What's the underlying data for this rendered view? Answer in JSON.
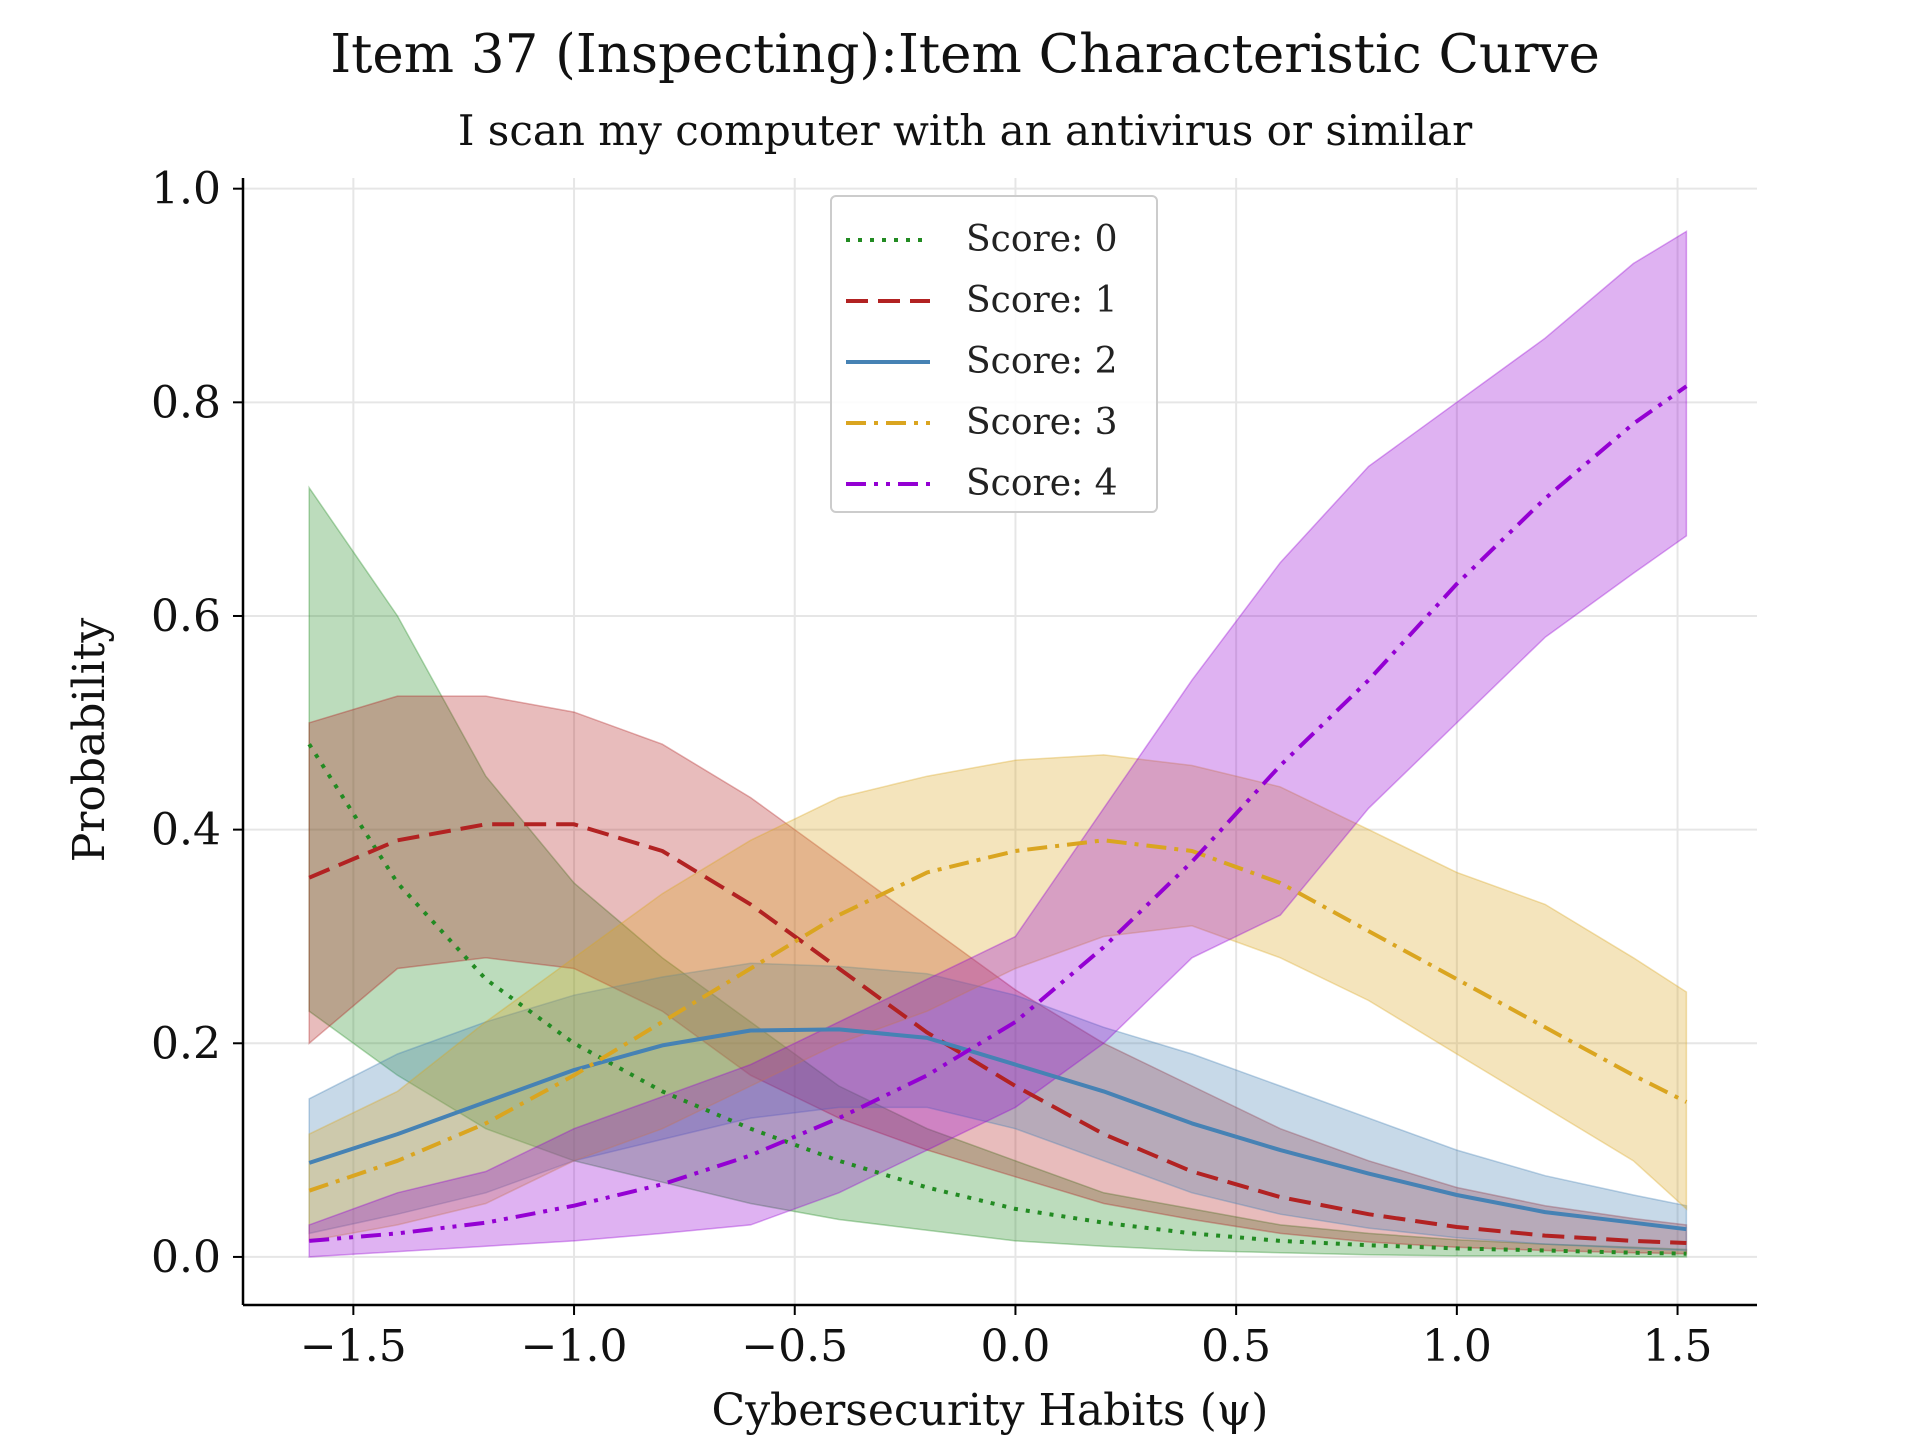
{
  "chart_data": {
    "type": "line",
    "title": "Item 37 (Inspecting):Item Characteristic Curve",
    "subtitle": "I scan my computer with an antivirus or similar",
    "xlabel": "Cybersecurity Habits (ψ)",
    "ylabel": "Probability",
    "xlim": [
      -1.75,
      1.68
    ],
    "ylim": [
      -0.045,
      1.01
    ],
    "xticks": [
      -1.5,
      -1.0,
      -0.5,
      0.0,
      0.5,
      1.0,
      1.5
    ],
    "xtick_labels": [
      "−1.5",
      "−1.0",
      "−0.5",
      "0.0",
      "0.5",
      "1.0",
      "1.5"
    ],
    "yticks": [
      0.0,
      0.2,
      0.4,
      0.6,
      0.8,
      1.0
    ],
    "ytick_labels": [
      "0.0",
      "0.2",
      "0.4",
      "0.6",
      "0.8",
      "1.0"
    ],
    "grid": true,
    "legend_position": "upper center",
    "x": [
      -1.6,
      -1.4,
      -1.2,
      -1.0,
      -0.8,
      -0.6,
      -0.4,
      -0.2,
      0.0,
      0.2,
      0.4,
      0.6,
      0.8,
      1.0,
      1.2,
      1.4,
      1.52
    ],
    "series": [
      {
        "name": "Score: 0",
        "color": "#228B22",
        "dash": "dotted",
        "values": [
          0.48,
          0.35,
          0.26,
          0.2,
          0.155,
          0.12,
          0.09,
          0.065,
          0.045,
          0.032,
          0.022,
          0.015,
          0.011,
          0.008,
          0.006,
          0.004,
          0.003
        ],
        "lower": [
          0.23,
          0.17,
          0.12,
          0.09,
          0.07,
          0.05,
          0.035,
          0.025,
          0.015,
          0.01,
          0.006,
          0.004,
          0.002,
          0.001,
          0.001,
          0.0,
          0.0
        ],
        "upper": [
          0.72,
          0.6,
          0.45,
          0.35,
          0.28,
          0.22,
          0.16,
          0.12,
          0.09,
          0.06,
          0.045,
          0.03,
          0.022,
          0.016,
          0.012,
          0.009,
          0.007
        ]
      },
      {
        "name": "Score: 1",
        "color": "#B22222",
        "dash": "dashed",
        "values": [
          0.355,
          0.39,
          0.405,
          0.405,
          0.38,
          0.33,
          0.27,
          0.21,
          0.16,
          0.115,
          0.08,
          0.056,
          0.04,
          0.028,
          0.02,
          0.015,
          0.013
        ],
        "lower": [
          0.2,
          0.27,
          0.28,
          0.27,
          0.23,
          0.17,
          0.13,
          0.1,
          0.075,
          0.05,
          0.035,
          0.022,
          0.014,
          0.009,
          0.006,
          0.004,
          0.003
        ],
        "upper": [
          0.5,
          0.525,
          0.525,
          0.51,
          0.48,
          0.43,
          0.37,
          0.31,
          0.25,
          0.2,
          0.16,
          0.12,
          0.09,
          0.065,
          0.048,
          0.036,
          0.03
        ]
      },
      {
        "name": "Score: 2",
        "color": "#4682B4",
        "dash": "solid",
        "values": [
          0.088,
          0.115,
          0.145,
          0.175,
          0.198,
          0.212,
          0.213,
          0.205,
          0.18,
          0.155,
          0.125,
          0.1,
          0.078,
          0.058,
          0.042,
          0.032,
          0.026
        ],
        "lower": [
          0.022,
          0.04,
          0.06,
          0.09,
          0.11,
          0.13,
          0.14,
          0.14,
          0.12,
          0.09,
          0.06,
          0.04,
          0.027,
          0.018,
          0.012,
          0.008,
          0.006
        ],
        "upper": [
          0.148,
          0.19,
          0.22,
          0.245,
          0.262,
          0.275,
          0.272,
          0.265,
          0.245,
          0.215,
          0.19,
          0.16,
          0.13,
          0.1,
          0.076,
          0.058,
          0.048
        ]
      },
      {
        "name": "Score: 3",
        "color": "#DAA520",
        "dash": "dashdot",
        "values": [
          0.062,
          0.09,
          0.125,
          0.17,
          0.22,
          0.27,
          0.32,
          0.36,
          0.38,
          0.39,
          0.38,
          0.35,
          0.305,
          0.26,
          0.215,
          0.17,
          0.145
        ],
        "lower": [
          0.015,
          0.03,
          0.05,
          0.09,
          0.12,
          0.16,
          0.2,
          0.23,
          0.27,
          0.3,
          0.31,
          0.28,
          0.24,
          0.19,
          0.14,
          0.09,
          0.045
        ],
        "upper": [
          0.115,
          0.155,
          0.22,
          0.28,
          0.34,
          0.39,
          0.43,
          0.45,
          0.465,
          0.47,
          0.46,
          0.44,
          0.4,
          0.36,
          0.33,
          0.28,
          0.248
        ]
      },
      {
        "name": "Score: 4",
        "color": "#9400D3",
        "dash": "dashdotdot",
        "values": [
          0.015,
          0.022,
          0.032,
          0.048,
          0.068,
          0.095,
          0.13,
          0.17,
          0.22,
          0.29,
          0.37,
          0.46,
          0.54,
          0.63,
          0.71,
          0.78,
          0.815
        ],
        "lower": [
          0.0,
          0.005,
          0.01,
          0.015,
          0.022,
          0.03,
          0.06,
          0.1,
          0.14,
          0.2,
          0.28,
          0.32,
          0.42,
          0.5,
          0.58,
          0.64,
          0.675
        ],
        "upper": [
          0.03,
          0.06,
          0.08,
          0.12,
          0.15,
          0.18,
          0.22,
          0.26,
          0.3,
          0.42,
          0.54,
          0.65,
          0.74,
          0.8,
          0.86,
          0.93,
          0.96
        ]
      }
    ]
  }
}
